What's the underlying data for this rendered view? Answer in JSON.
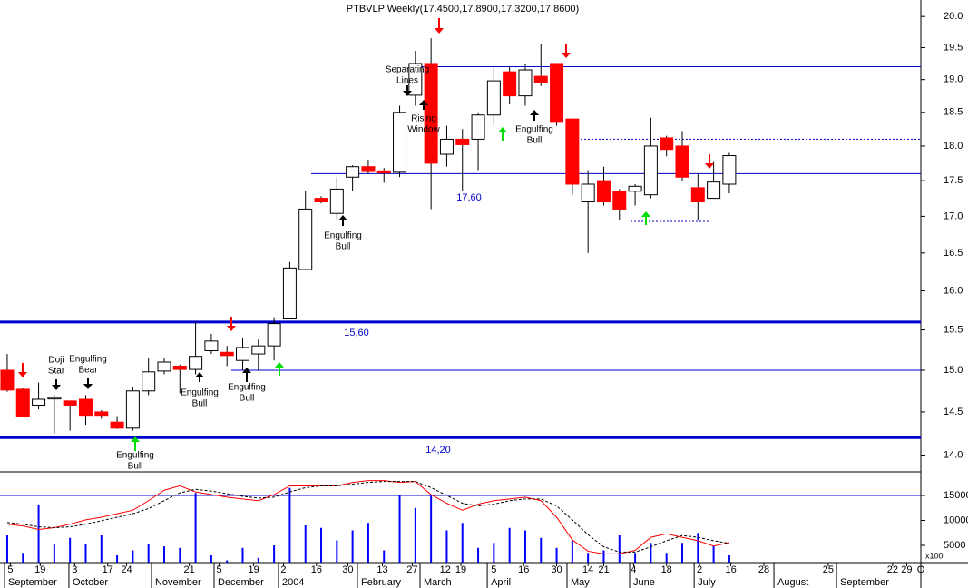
{
  "chart_data": [
    {
      "type": "candlestick",
      "title": "PTBVLP Weekly(17.4500,17.8900,17.3200,17.8600)",
      "x": [
        0,
        1,
        2,
        3,
        4,
        5,
        6,
        7,
        8,
        9,
        10,
        11,
        12,
        13,
        14,
        15,
        16,
        17,
        18,
        19,
        20,
        21,
        22,
        23,
        24,
        25,
        26,
        27,
        28,
        29,
        30,
        31,
        32,
        33,
        34,
        35,
        36,
        37,
        38,
        39,
        40,
        41,
        42,
        43,
        44,
        45,
        46
      ],
      "open": [
        15.0,
        14.77,
        14.58,
        14.67,
        14.63,
        14.65,
        14.5,
        14.38,
        14.31,
        14.75,
        14.99,
        15.05,
        15.01,
        15.24,
        15.22,
        15.12,
        15.2,
        15.3,
        15.65,
        16.28,
        17.25,
        17.04,
        17.55,
        17.7,
        17.64,
        17.62,
        18.76,
        19.25,
        17.88,
        18.1,
        18.1,
        18.46,
        19.12,
        18.75,
        19.05,
        19.25,
        18.4,
        17.2,
        17.5,
        17.35,
        17.35,
        17.3,
        18.12,
        18.0,
        17.4,
        17.25,
        17.45
      ],
      "high": [
        15.2,
        14.78,
        14.85,
        14.7,
        14.62,
        14.7,
        14.52,
        14.45,
        14.8,
        15.15,
        15.15,
        15.07,
        15.6,
        15.45,
        15.3,
        15.4,
        15.38,
        15.66,
        16.38,
        17.35,
        17.28,
        17.55,
        17.72,
        17.8,
        17.68,
        18.6,
        19.45,
        19.65,
        18.3,
        18.25,
        18.5,
        19.2,
        19.2,
        19.25,
        19.55,
        19.25,
        18.4,
        17.65,
        17.7,
        17.38,
        17.45,
        18.42,
        18.15,
        18.22,
        17.6,
        17.78,
        17.9
      ],
      "low": [
        14.74,
        14.45,
        14.53,
        14.25,
        14.28,
        14.35,
        14.42,
        14.3,
        14.28,
        14.7,
        14.95,
        14.72,
        14.95,
        15.2,
        15.05,
        15.0,
        15.0,
        15.12,
        15.65,
        16.28,
        17.18,
        16.95,
        17.35,
        17.6,
        17.47,
        17.55,
        18.6,
        17.1,
        17.7,
        17.35,
        17.65,
        18.3,
        18.62,
        18.6,
        18.9,
        18.3,
        17.3,
        16.5,
        17.15,
        16.95,
        17.15,
        17.25,
        17.85,
        17.5,
        16.95,
        17.25,
        17.32
      ],
      "close": [
        14.76,
        14.45,
        14.65,
        14.67,
        14.58,
        14.46,
        14.46,
        14.31,
        14.75,
        14.98,
        15.1,
        15.01,
        15.17,
        15.36,
        15.18,
        15.28,
        15.3,
        15.58,
        16.3,
        17.1,
        17.2,
        17.38,
        17.7,
        17.63,
        17.61,
        18.5,
        19.25,
        17.75,
        18.1,
        18.02,
        18.46,
        18.98,
        18.75,
        19.15,
        18.95,
        18.35,
        17.45,
        17.45,
        17.2,
        17.1,
        17.42,
        18.0,
        17.95,
        17.55,
        17.2,
        17.48,
        17.86
      ],
      "up_color": "#ffffff",
      "down_color": "#ff0000",
      "xlim": [
        -0.46,
        58.2
      ],
      "xticks": [
        {
          "value": 0.2,
          "label": "5"
        },
        {
          "value": 2.1,
          "label": "19"
        },
        {
          "value": 4.3,
          "label": "3"
        },
        {
          "value": 6.4,
          "label": "17"
        },
        {
          "value": 7.6,
          "label": "24"
        },
        {
          "value": 11.6,
          "label": "21"
        },
        {
          "value": 13.5,
          "label": "5"
        },
        {
          "value": 15.7,
          "label": "19"
        },
        {
          "value": 17.6,
          "label": "2"
        },
        {
          "value": 19.7,
          "label": "16"
        },
        {
          "value": 21.7,
          "label": "30"
        },
        {
          "value": 23.9,
          "label": "13"
        },
        {
          "value": 25.8,
          "label": "27"
        },
        {
          "value": 27.9,
          "label": "12"
        },
        {
          "value": 28.9,
          "label": "19"
        },
        {
          "value": 31.0,
          "label": "5"
        },
        {
          "value": 32.9,
          "label": "16"
        },
        {
          "value": 35.0,
          "label": "30"
        },
        {
          "value": 37.0,
          "label": "14"
        },
        {
          "value": 38.0,
          "label": "21"
        },
        {
          "value": 39.9,
          "label": "4"
        },
        {
          "value": 42.0,
          "label": "18"
        },
        {
          "value": 44.1,
          "label": "2"
        },
        {
          "value": 46.1,
          "label": "16"
        },
        {
          "value": 48.2,
          "label": "28"
        },
        {
          "value": 52.3,
          "label": "25"
        },
        {
          "value": 56.4,
          "label": "22"
        },
        {
          "value": 57.3,
          "label": "29"
        },
        {
          "value": 58.2,
          "label": "O"
        }
      ],
      "month_ticks": [
        {
          "value": -0.17,
          "label": "September"
        },
        {
          "value": 3.93,
          "label": "October"
        },
        {
          "value": 9.19,
          "label": "November"
        },
        {
          "value": 13.18,
          "label": "December"
        },
        {
          "value": 17.28,
          "label": "2004"
        },
        {
          "value": 22.31,
          "label": "February"
        },
        {
          "value": 26.3,
          "label": "March"
        },
        {
          "value": 30.58,
          "label": "April"
        },
        {
          "value": 35.66,
          "label": "May"
        },
        {
          "value": 39.65,
          "label": "June"
        },
        {
          "value": 43.76,
          "label": "July"
        },
        {
          "value": 48.84,
          "label": "August"
        },
        {
          "value": 52.83,
          "label": "September"
        }
      ],
      "ylim": [
        13.81,
        20.27
      ],
      "log_scale": true,
      "yticks": [
        {
          "value": 14,
          "label": "14.0"
        },
        {
          "value": 14.5,
          "label": "14.5"
        },
        {
          "value": 15,
          "label": "15.0"
        },
        {
          "value": 15.5,
          "label": "15.5"
        },
        {
          "value": 16,
          "label": "16.0"
        },
        {
          "value": 16.5,
          "label": "16.5"
        },
        {
          "value": 17,
          "label": "17.0"
        },
        {
          "value": 17.5,
          "label": "17.5"
        },
        {
          "value": 18,
          "label": "18.0"
        },
        {
          "value": 18.5,
          "label": "18.5"
        },
        {
          "value": 19,
          "label": "19.0"
        },
        {
          "value": 19.5,
          "label": "19.5"
        },
        {
          "value": 20,
          "label": "20.0"
        }
      ],
      "levels": [
        {
          "value": 19.2
        },
        {
          "value": 17.6,
          "label": "17,60"
        },
        {
          "value": 18.1,
          "dashed": true
        },
        {
          "value": 16.93,
          "dashed": true
        },
        {
          "value": 15.6,
          "label": "15,60",
          "thick": true
        },
        {
          "value": 15.0
        },
        {
          "value": 14.2,
          "label": "14,20",
          "thick": true
        }
      ],
      "level_color": "#0000cc",
      "annotations": [
        [
          "Doji",
          "Star"
        ],
        [
          "Engulfing",
          "Bear"
        ],
        [
          "Engulfing",
          "Bull"
        ],
        [
          "Engulfing",
          "Bull"
        ],
        [
          "Engulfing",
          "Bull"
        ],
        [
          "Engulfing",
          "Bull"
        ],
        [
          "Separating",
          "Lines"
        ],
        [
          "Rising",
          "Window"
        ],
        [
          "Engulfing",
          "Bull"
        ]
      ]
    },
    {
      "type": "bar",
      "values": [
        7000,
        3500,
        13200,
        5200,
        6500,
        5200,
        7000,
        3000,
        4000,
        5200,
        4800,
        4500,
        15500,
        3000,
        2000,
        4500,
        2500,
        5000,
        16500,
        9000,
        8500,
        6000,
        8000,
        9500,
        4000,
        15000,
        12500,
        15000,
        8000,
        9500,
        4500,
        5500,
        8500,
        8000,
        6500,
        4500,
        6000,
        3500,
        4000,
        7000,
        3500,
        5500,
        3500,
        5500,
        7500,
        5000,
        3000
      ],
      "color": "#0000ff",
      "ylim": [
        1550,
        19360
      ],
      "yticks": [
        5000,
        10000,
        15000
      ],
      "level": 15000,
      "unit_label": "x100"
    },
    {
      "type": "line",
      "series": [
        {
          "color": "#ff0000",
          "values": [
            42,
            40,
            36,
            38,
            42,
            47,
            50,
            54,
            58,
            69,
            81,
            86,
            79,
            76,
            73,
            71,
            69,
            76,
            86,
            86,
            86,
            86,
            90,
            92,
            92,
            90,
            91,
            76,
            66,
            58,
            65,
            69,
            71,
            73,
            69,
            50,
            24,
            11,
            8,
            8,
            12,
            27,
            31,
            27,
            23,
            17,
            21
          ]
        },
        {
          "color": "#000000",
          "dashed": true,
          "values": [
            44,
            42,
            39,
            38,
            39,
            42,
            46,
            50,
            54,
            60,
            69,
            78,
            82,
            80,
            77,
            74,
            72,
            73,
            79,
            84,
            86,
            86,
            88,
            90,
            91,
            91,
            91,
            84,
            75,
            66,
            63,
            65,
            69,
            71,
            71,
            63,
            47,
            30,
            16,
            10,
            10,
            16,
            23,
            29,
            27,
            23,
            20
          ]
        }
      ],
      "ylim": [
        0,
        100
      ]
    }
  ]
}
